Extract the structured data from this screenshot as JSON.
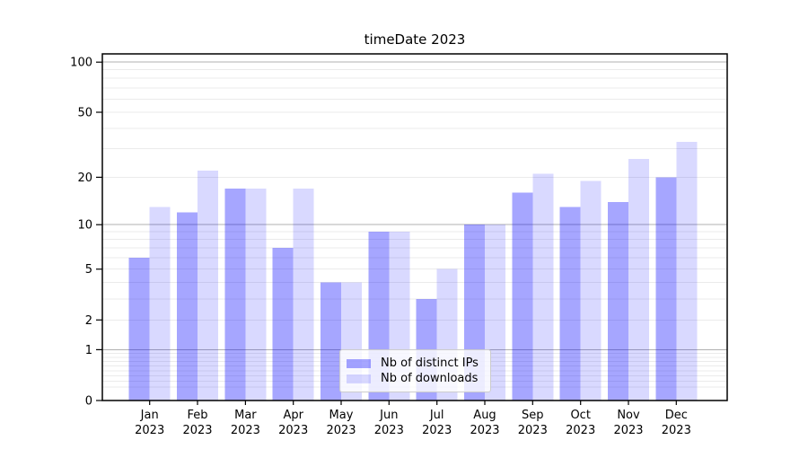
{
  "chart_data": {
    "type": "bar",
    "title": "timeDate 2023",
    "categories": [
      "Jan 2023",
      "Feb 2023",
      "Mar 2023",
      "Apr 2023",
      "May 2023",
      "Jun 2023",
      "Jul 2023",
      "Aug 2023",
      "Sep 2023",
      "Oct 2023",
      "Nov 2023",
      "Dec 2023"
    ],
    "series": [
      {
        "name": "Nb of distinct IPs",
        "color": "rgba(0,0,255,0.35)",
        "values": [
          6,
          12,
          17,
          7,
          4,
          9,
          3,
          10,
          16,
          13,
          14,
          20
        ]
      },
      {
        "name": "Nb of downloads",
        "color": "rgba(0,0,255,0.15)",
        "values": [
          13,
          22,
          17,
          17,
          4,
          9,
          5,
          10,
          21,
          19,
          26,
          33
        ]
      }
    ],
    "xlabel": "",
    "ylabel": "",
    "yaxis": {
      "scale": "log1p",
      "ticks": [
        0,
        1,
        2,
        5,
        10,
        20,
        50,
        100
      ],
      "range": [
        0,
        112
      ]
    },
    "grid": {
      "on": true,
      "major_values": [
        1,
        10,
        100
      ],
      "major_color": "#b0b0b0",
      "minor_color": "#ebebeb"
    },
    "legend": {
      "position": "lower-center"
    },
    "axis_color": "#000000",
    "tick_label_color": "#000000"
  }
}
